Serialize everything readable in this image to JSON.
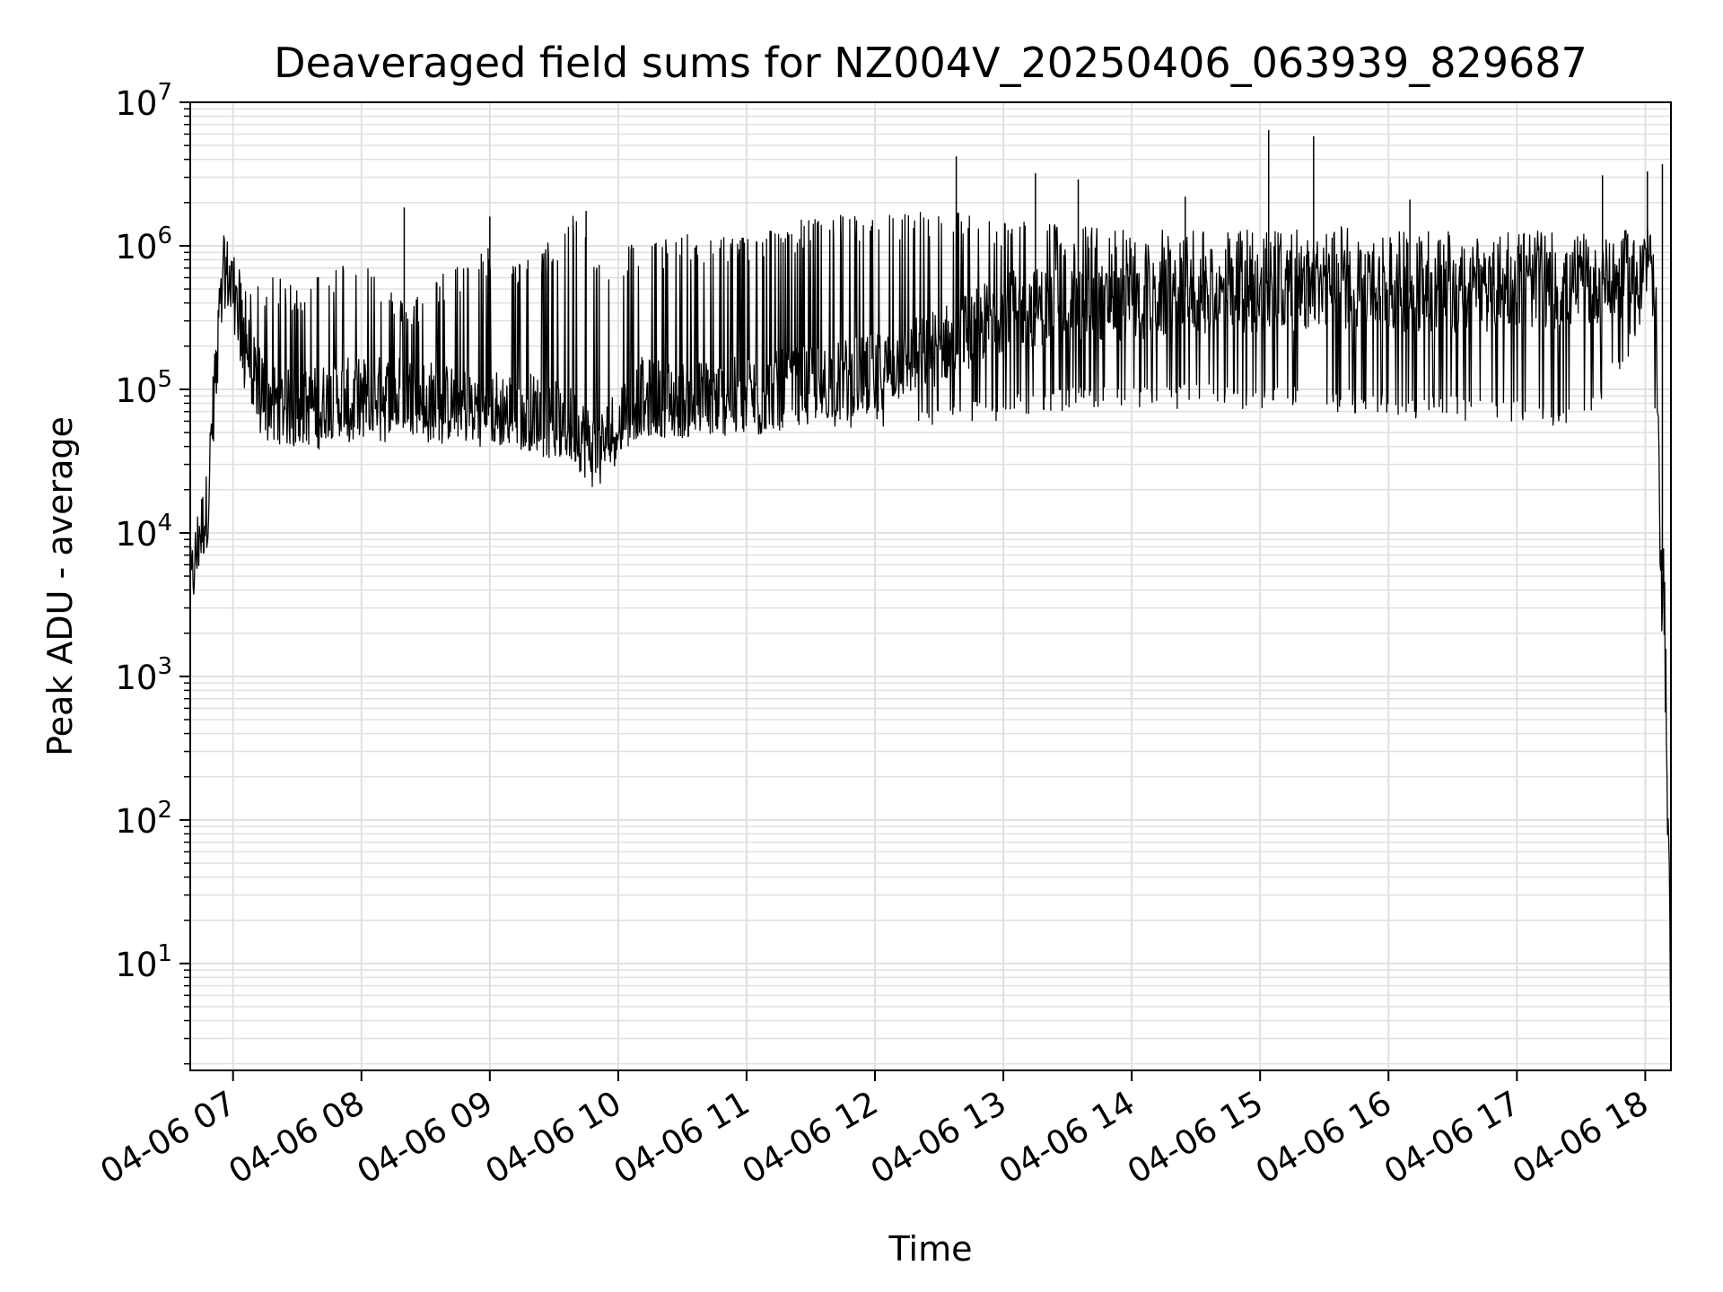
{
  "chart_data": {
    "type": "line",
    "title": "Deaveraged field sums for NZ004V_20250406_063939_829687",
    "xlabel": "Time",
    "ylabel": "Peak ADU - average",
    "yscale": "log",
    "ylim": [
      1.8,
      10000000
    ],
    "xlim": [
      "04-06 06:40",
      "04-06 18:12"
    ],
    "grid": true,
    "line_color": "#000000",
    "grid_color": "#e0e0e0",
    "x_ticks": [
      "04-06 07",
      "04-06 08",
      "04-06 09",
      "04-06 10",
      "04-06 11",
      "04-06 12",
      "04-06 13",
      "04-06 14",
      "04-06 15",
      "04-06 16",
      "04-06 17",
      "04-06 18"
    ],
    "y_ticks": [
      {
        "base": "10",
        "exp": "1",
        "value": 10
      },
      {
        "base": "10",
        "exp": "2",
        "value": 100
      },
      {
        "base": "10",
        "exp": "3",
        "value": 1000
      },
      {
        "base": "10",
        "exp": "4",
        "value": 10000
      },
      {
        "base": "10",
        "exp": "5",
        "value": 100000
      },
      {
        "base": "10",
        "exp": "6",
        "value": 1000000
      },
      {
        "base": "10",
        "exp": "7",
        "value": 10000000
      }
    ],
    "series": [
      {
        "x": [
          "04-06 06:40",
          "04-06 06:44",
          "04-06 06:48",
          "04-06 06:52",
          "04-06 06:56",
          "04-06 07:00",
          "04-06 07:05",
          "04-06 07:10",
          "04-06 07:20",
          "04-06 07:30",
          "04-06 07:45",
          "04-06 08:00",
          "04-06 08:20",
          "04-06 08:40",
          "04-06 09:00",
          "04-06 09:20",
          "04-06 09:40",
          "04-06 09:50",
          "04-06 10:00",
          "04-06 10:10",
          "04-06 10:30",
          "04-06 11:00",
          "04-06 11:30",
          "04-06 12:00",
          "04-06 12:30",
          "04-06 13:00",
          "04-06 13:30",
          "04-06 14:00",
          "04-06 14:30",
          "04-06 15:00",
          "04-06 15:30",
          "04-06 16:00",
          "04-06 16:30",
          "04-06 17:00",
          "04-06 17:30",
          "04-06 17:55",
          "04-06 18:02",
          "04-06 18:05",
          "04-06 18:07",
          "04-06 18:09",
          "04-06 18:10",
          "04-06 18:11",
          "04-06 18:12"
        ],
        "median": [
          4000,
          9000,
          15000,
          150000,
          700000,
          500000,
          250000,
          120000,
          80000,
          70000,
          85000,
          90000,
          95000,
          80000,
          75000,
          70000,
          55000,
          35000,
          60000,
          90000,
          85000,
          90000,
          110000,
          130000,
          200000,
          350000,
          400000,
          400000,
          450000,
          450000,
          500000,
          480000,
          450000,
          500000,
          500000,
          600000,
          800000,
          200000,
          10000,
          3000,
          500,
          50,
          3.8
        ],
        "band_low": [
          4000,
          5000,
          8000,
          60000,
          400000,
          300000,
          100000,
          50000,
          40000,
          35000,
          40000,
          40000,
          45000,
          40000,
          40000,
          35000,
          30000,
          25000,
          35000,
          45000,
          45000,
          45000,
          55000,
          50000,
          50000,
          60000,
          70000,
          70000,
          75000,
          70000,
          70000,
          65000,
          60000,
          60000,
          50000,
          200000,
          400000,
          50000,
          3000,
          800,
          200,
          10,
          3.8
        ],
        "band_high": [
          4000,
          15000,
          20000,
          300000,
          1200000,
          900000,
          600000,
          600000,
          600000,
          550000,
          700000,
          900000,
          400000,
          700000,
          1000000,
          800000,
          1800000,
          900000,
          1000000,
          1100000,
          1200000,
          1200000,
          1600000,
          1700000,
          1800000,
          1600000,
          1400000,
          1300000,
          1300000,
          1300000,
          1400000,
          1300000,
          1300000,
          1300000,
          1200000,
          1300000,
          1200000,
          800000,
          20000,
          6000,
          1000,
          100,
          3.8
        ],
        "peaks": [
          {
            "x": "04-06 08:20",
            "y": 1850000
          },
          {
            "x": "04-06 09:00",
            "y": 1600000
          },
          {
            "x": "04-06 09:45",
            "y": 1750000
          },
          {
            "x": "04-06 11:45",
            "y": 1600000
          },
          {
            "x": "04-06 12:38",
            "y": 4200000
          },
          {
            "x": "04-06 13:15",
            "y": 3200000
          },
          {
            "x": "04-06 13:35",
            "y": 2900000
          },
          {
            "x": "04-06 14:25",
            "y": 2200000
          },
          {
            "x": "04-06 15:04",
            "y": 6400000
          },
          {
            "x": "04-06 15:25",
            "y": 5800000
          },
          {
            "x": "04-06 16:10",
            "y": 2100000
          },
          {
            "x": "04-06 17:40",
            "y": 3100000
          },
          {
            "x": "04-06 18:01",
            "y": 3300000
          },
          {
            "x": "04-06 18:08",
            "y": 3700000
          }
        ]
      }
    ]
  }
}
